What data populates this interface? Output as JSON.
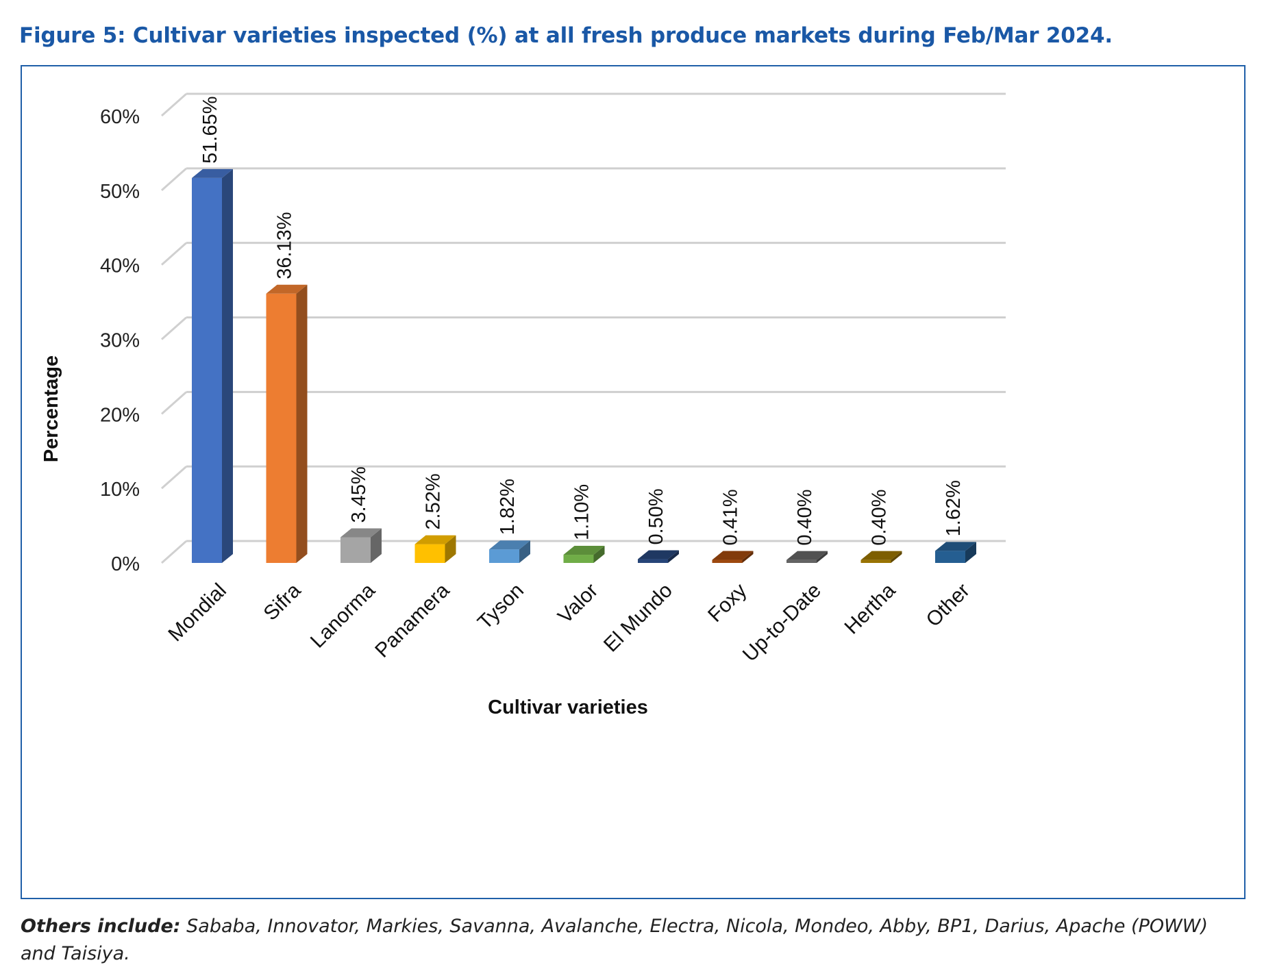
{
  "figure": {
    "title": "Figure 5: Cultivar varieties inspected (%) at all fresh produce markets during Feb/Mar 2024."
  },
  "footnote": {
    "label": "Others include:",
    "text": " Sababa, Innovator, Markies, Savanna, Avalanche, Electra, Nicola, Mondeo, Abby, BP1, Darius, Apache (POWW) and Taisiya."
  },
  "chart_data": {
    "type": "bar",
    "style": "3d-column",
    "categories": [
      "Mondial",
      "Sifra",
      "Lanorma",
      "Panamera",
      "Tyson",
      "Valor",
      "El Mundo",
      "Foxy",
      "Up-to-Date",
      "Hertha",
      "Other"
    ],
    "values": [
      51.65,
      36.13,
      3.45,
      2.52,
      1.82,
      1.1,
      0.5,
      0.41,
      0.4,
      0.4,
      1.62
    ],
    "data_labels": [
      "51.65%",
      "36.13%",
      "3.45%",
      "2.52%",
      "1.82%",
      "1.10%",
      "0.50%",
      "0.41%",
      "0.40%",
      "0.40%",
      "1.62%"
    ],
    "colors": [
      "#4472c4",
      "#ed7d31",
      "#a5a5a5",
      "#ffc000",
      "#5b9bd5",
      "#70ad47",
      "#264478",
      "#9e480e",
      "#636363",
      "#997300",
      "#255e91"
    ],
    "xlabel": "Cultivar varieties",
    "ylabel": "Percentage",
    "ylim": [
      0,
      60
    ],
    "yticks": [
      0,
      10,
      20,
      30,
      40,
      50,
      60
    ],
    "ytick_labels": [
      "0%",
      "10%",
      "20%",
      "30%",
      "40%",
      "50%",
      "60%"
    ],
    "grid": true,
    "legend": "none"
  }
}
